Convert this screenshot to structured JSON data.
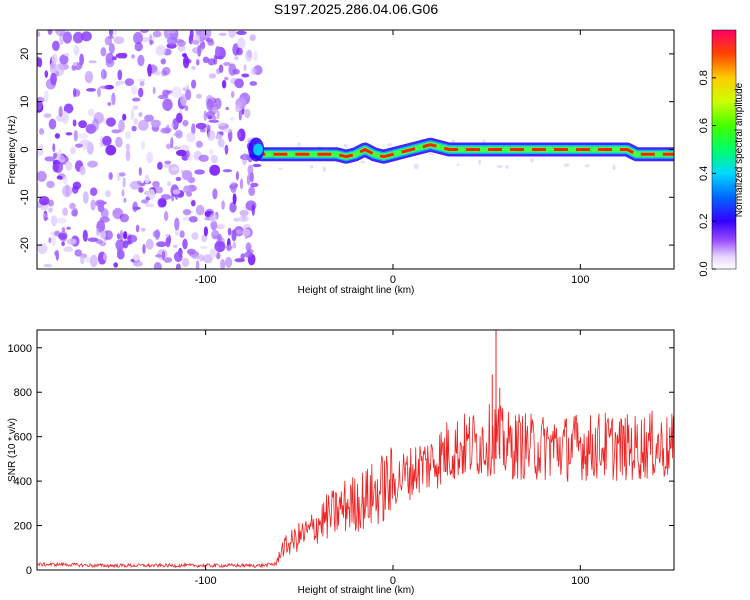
{
  "figure": {
    "title": "S197.2025.286.04.06.G06"
  },
  "chart_data": [
    {
      "type": "heatmap",
      "name": "spectrogram",
      "xlabel": "Height of straight line (km)",
      "ylabel": "Frequency (Hz)",
      "xlim": [
        -190,
        150
      ],
      "ylim": [
        -25,
        25
      ],
      "x_ticks": [
        -100,
        0,
        100
      ],
      "x_tick_labels": [
        "-100",
        "0",
        "100"
      ],
      "y_ticks": [
        -20,
        -10,
        0,
        10,
        20
      ],
      "y_tick_labels": [
        "-20",
        "-10",
        "0",
        "10",
        "20"
      ],
      "noise_region_x": [
        -190,
        -72
      ],
      "signal_start_x": -75,
      "signal_track": {
        "x": [
          -75,
          -70,
          -65,
          -60,
          -55,
          -50,
          -45,
          -40,
          -35,
          -30,
          -25,
          -20,
          -15,
          -10,
          -5,
          0,
          5,
          10,
          15,
          20,
          25,
          30,
          35,
          40,
          45,
          50,
          55,
          60,
          65,
          70,
          75,
          80,
          85,
          90,
          95,
          100,
          105,
          110,
          115,
          120,
          125,
          130,
          135,
          140,
          145,
          150
        ],
        "frequency_hz": [
          0,
          -1,
          -1,
          -1,
          -1,
          -1,
          -1,
          -1,
          -1,
          -1,
          -1.5,
          -1,
          0,
          -1,
          -1.5,
          -1,
          -0.5,
          0,
          0.5,
          1,
          0.5,
          0,
          0,
          0,
          0,
          0,
          0,
          0,
          0,
          0,
          0,
          0,
          0,
          0,
          0,
          0,
          0,
          0,
          0,
          0,
          0,
          -1,
          -1,
          -1,
          -1,
          -1
        ]
      },
      "colorbar": {
        "label": "Normalized spectral amplitude",
        "range": [
          0,
          1
        ],
        "ticks": [
          0,
          0.2,
          0.4,
          0.6,
          0.8
        ],
        "tick_labels": [
          "0.0",
          "0.2",
          "0.4",
          "0.6",
          "0.8"
        ]
      }
    },
    {
      "type": "line",
      "name": "snr",
      "xlabel": "Height of straight line (km)",
      "ylabel": "SNR (10 * v/v)",
      "xlim": [
        -190,
        150
      ],
      "ylim": [
        0,
        1080
      ],
      "x_ticks": [
        -100,
        0,
        100
      ],
      "x_tick_labels": [
        "-100",
        "0",
        "100"
      ],
      "y_ticks": [
        0,
        200,
        400,
        600,
        800,
        1000
      ],
      "y_tick_labels": [
        "0",
        "200",
        "400",
        "600",
        "800",
        "1000"
      ],
      "color": "#ee2222",
      "series": [
        {
          "name": "SNR",
          "x": [
            -190,
            -175,
            -160,
            -145,
            -130,
            -115,
            -100,
            -90,
            -80,
            -70,
            -65,
            -62,
            -60,
            -55,
            -50,
            -45,
            -40,
            -35,
            -30,
            -25,
            -20,
            -15,
            -10,
            -5,
            0,
            5,
            10,
            15,
            20,
            25,
            30,
            35,
            40,
            45,
            50,
            55,
            60,
            65,
            70,
            75,
            80,
            85,
            90,
            95,
            100,
            105,
            110,
            115,
            120,
            125,
            130,
            135,
            140,
            145,
            150
          ],
          "y": [
            25,
            25,
            20,
            20,
            20,
            20,
            20,
            20,
            20,
            20,
            25,
            30,
            90,
            120,
            150,
            170,
            210,
            240,
            260,
            290,
            300,
            320,
            340,
            370,
            390,
            420,
            440,
            470,
            480,
            510,
            540,
            550,
            560,
            570,
            580,
            600,
            560,
            560,
            560,
            550,
            550,
            560,
            550,
            550,
            560,
            550,
            560,
            560,
            550,
            550,
            550,
            560,
            560,
            550,
            550
          ]
        }
      ],
      "spikes": [
        {
          "x": 55,
          "y": 1080
        },
        {
          "x": 53,
          "y": 880
        },
        {
          "x": 57,
          "y": 820
        }
      ]
    }
  ]
}
